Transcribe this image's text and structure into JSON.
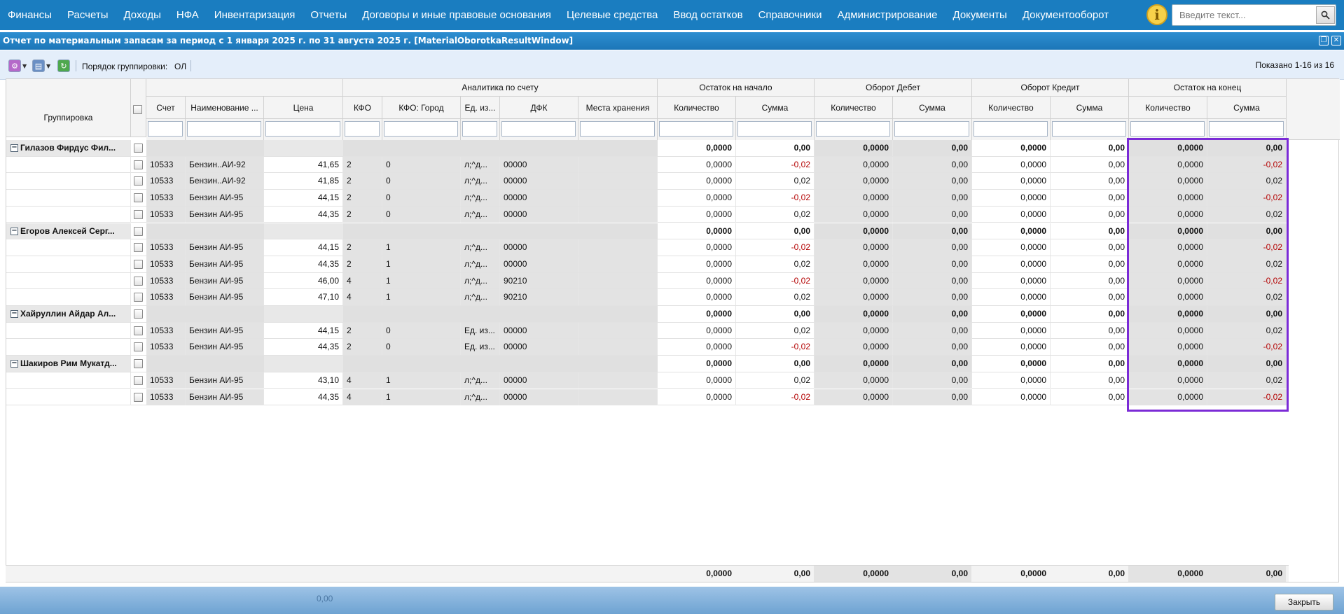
{
  "nav": {
    "items": [
      "Финансы",
      "Расчеты",
      "Доходы",
      "НФА",
      "Инвентаризация",
      "Отчеты",
      "Договоры и иные правовые основания",
      "Целевые средства",
      "Ввод остатков",
      "Справочники",
      "Администрирование",
      "Документы",
      "Документооборот"
    ],
    "search_placeholder": "Введите текст...",
    "info_icon": "info-icon",
    "info_glyph": "i",
    "search_icon": "search-icon"
  },
  "window": {
    "title": "Отчет по материальным запасам за период с 1 января 2025 г. по 31 августа 2025 г. [MaterialOborotkaResultWindow]"
  },
  "toolbar": {
    "group_order_label": "Порядок группировки:",
    "group_order_value": "ОЛ",
    "shown": "Показано 1-16 из 16"
  },
  "grid": {
    "group_headers": {
      "analytics": "Аналитика по счету",
      "start": "Остаток на начало",
      "debit": "Оборот Дебет",
      "credit": "Оборот Кредит",
      "end": "Остаток на конец"
    },
    "columns": {
      "grouping": "Группировка",
      "account": "Счет",
      "name": "Наименование ...",
      "price": "Цена",
      "kfo": "КФО",
      "kfo_city": "КФО: Город",
      "unit": "Ед. из...",
      "dfk": "ДФК",
      "storage": "Места хранения",
      "start_qty": "Количество",
      "start_sum": "Сумма",
      "debit_qty": "Количество",
      "debit_sum": "Сумма",
      "credit_qty": "Количество",
      "credit_sum": "Сумма",
      "end_qty": "Количество",
      "end_sum": "Сумма"
    },
    "rows": [
      {
        "type": "group",
        "label": "Гилазов Фирдус Фил...",
        "v": [
          "0,0000",
          "0,00",
          "0,0000",
          "0,00",
          "0,0000",
          "0,00",
          "0,0000",
          "0,00"
        ]
      },
      {
        "type": "item",
        "account": "10533",
        "name": "Бензин..АИ-92",
        "price": "41,65",
        "kfo": "2",
        "city": "0",
        "unit": "л;^д...",
        "dfk": "00000",
        "v": [
          "0,0000",
          "-0,02",
          "0,0000",
          "0,00",
          "0,0000",
          "0,00",
          "0,0000",
          "-0,02"
        ]
      },
      {
        "type": "item",
        "account": "10533",
        "name": "Бензин..АИ-92",
        "price": "41,85",
        "kfo": "2",
        "city": "0",
        "unit": "л;^д...",
        "dfk": "00000",
        "v": [
          "0,0000",
          "0,02",
          "0,0000",
          "0,00",
          "0,0000",
          "0,00",
          "0,0000",
          "0,02"
        ]
      },
      {
        "type": "item",
        "account": "10533",
        "name": "Бензин АИ-95",
        "price": "44,15",
        "kfo": "2",
        "city": "0",
        "unit": "л;^д...",
        "dfk": "00000",
        "v": [
          "0,0000",
          "-0,02",
          "0,0000",
          "0,00",
          "0,0000",
          "0,00",
          "0,0000",
          "-0,02"
        ]
      },
      {
        "type": "item",
        "account": "10533",
        "name": "Бензин АИ-95",
        "price": "44,35",
        "kfo": "2",
        "city": "0",
        "unit": "л;^д...",
        "dfk": "00000",
        "v": [
          "0,0000",
          "0,02",
          "0,0000",
          "0,00",
          "0,0000",
          "0,00",
          "0,0000",
          "0,02"
        ]
      },
      {
        "type": "group",
        "label": "Егоров Алексей Серг...",
        "v": [
          "0,0000",
          "0,00",
          "0,0000",
          "0,00",
          "0,0000",
          "0,00",
          "0,0000",
          "0,00"
        ]
      },
      {
        "type": "item",
        "account": "10533",
        "name": "Бензин АИ-95",
        "price": "44,15",
        "kfo": "2",
        "city": "1",
        "unit": "л;^д...",
        "dfk": "00000",
        "v": [
          "0,0000",
          "-0,02",
          "0,0000",
          "0,00",
          "0,0000",
          "0,00",
          "0,0000",
          "-0,02"
        ]
      },
      {
        "type": "item",
        "account": "10533",
        "name": "Бензин АИ-95",
        "price": "44,35",
        "kfo": "2",
        "city": "1",
        "unit": "л;^д...",
        "dfk": "00000",
        "v": [
          "0,0000",
          "0,02",
          "0,0000",
          "0,00",
          "0,0000",
          "0,00",
          "0,0000",
          "0,02"
        ]
      },
      {
        "type": "item",
        "account": "10533",
        "name": "Бензин АИ-95",
        "price": "46,00",
        "kfo": "4",
        "city": "1",
        "unit": "л;^д...",
        "dfk": "90210",
        "v": [
          "0,0000",
          "-0,02",
          "0,0000",
          "0,00",
          "0,0000",
          "0,00",
          "0,0000",
          "-0,02"
        ]
      },
      {
        "type": "item",
        "account": "10533",
        "name": "Бензин АИ-95",
        "price": "47,10",
        "kfo": "4",
        "city": "1",
        "unit": "л;^д...",
        "dfk": "90210",
        "v": [
          "0,0000",
          "0,02",
          "0,0000",
          "0,00",
          "0,0000",
          "0,00",
          "0,0000",
          "0,02"
        ]
      },
      {
        "type": "group",
        "label": "Хайруллин Айдар Ал...",
        "v": [
          "0,0000",
          "0,00",
          "0,0000",
          "0,00",
          "0,0000",
          "0,00",
          "0,0000",
          "0,00"
        ]
      },
      {
        "type": "item",
        "account": "10533",
        "name": "Бензин АИ-95",
        "price": "44,15",
        "kfo": "2",
        "city": "0",
        "unit": "Ед. из...",
        "dfk": "00000",
        "v": [
          "0,0000",
          "0,02",
          "0,0000",
          "0,00",
          "0,0000",
          "0,00",
          "0,0000",
          "0,02"
        ]
      },
      {
        "type": "item",
        "account": "10533",
        "name": "Бензин АИ-95",
        "price": "44,35",
        "kfo": "2",
        "city": "0",
        "unit": "Ед. из...",
        "dfk": "00000",
        "v": [
          "0,0000",
          "-0,02",
          "0,0000",
          "0,00",
          "0,0000",
          "0,00",
          "0,0000",
          "-0,02"
        ]
      },
      {
        "type": "group",
        "label": "Шакиров Рим Мукатд...",
        "v": [
          "0,0000",
          "0,00",
          "0,0000",
          "0,00",
          "0,0000",
          "0,00",
          "0,0000",
          "0,00"
        ]
      },
      {
        "type": "item",
        "account": "10533",
        "name": "Бензин АИ-95",
        "price": "43,10",
        "kfo": "4",
        "city": "1",
        "unit": "л;^д...",
        "dfk": "00000",
        "v": [
          "0,0000",
          "0,02",
          "0,0000",
          "0,00",
          "0,0000",
          "0,00",
          "0,0000",
          "0,02"
        ]
      },
      {
        "type": "item",
        "account": "10533",
        "name": "Бензин АИ-95",
        "price": "44,35",
        "kfo": "4",
        "city": "1",
        "unit": "л;^д...",
        "dfk": "00000",
        "v": [
          "0,0000",
          "-0,02",
          "0,0000",
          "0,00",
          "0,0000",
          "0,00",
          "0,0000",
          "-0,02"
        ]
      }
    ],
    "totals": [
      "0,0000",
      "0,00",
      "0,0000",
      "0,00",
      "0,0000",
      "0,00",
      "0,0000",
      "0,00"
    ]
  },
  "footer": {
    "close_label": "Закрыть",
    "ghost_value": "0,00"
  },
  "colors": {
    "nav_bg": "#1a7dc0",
    "negative": "#b30000",
    "highlight": "#7b2bd6"
  }
}
